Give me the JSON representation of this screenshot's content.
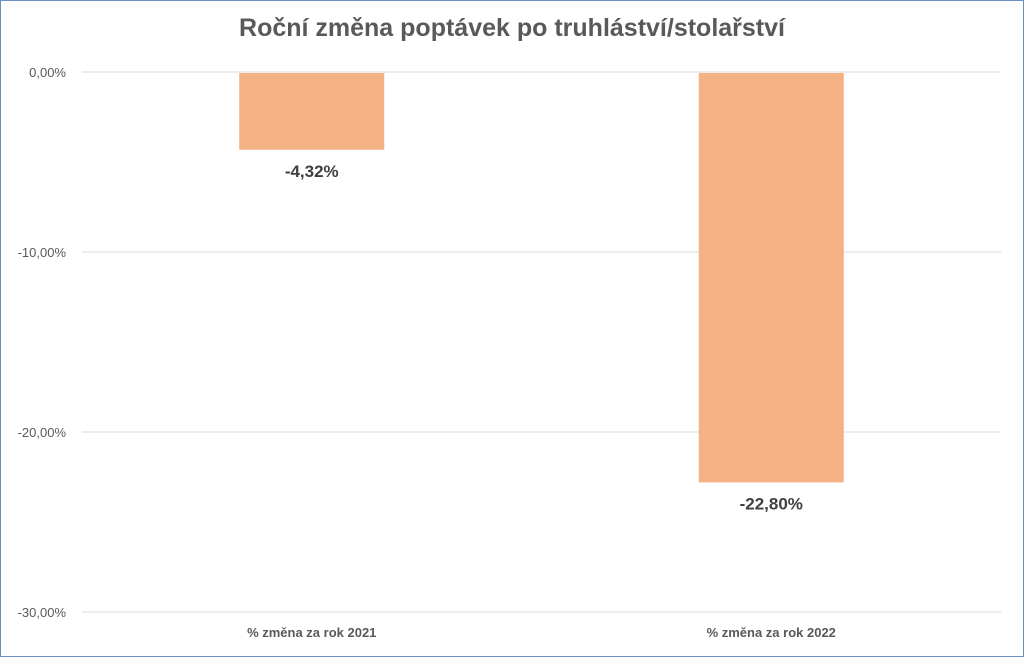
{
  "chart_data": {
    "type": "bar",
    "title": "Roční změna poptávek po truhlásтví/stolařství",
    "categories": [
      "% změna za rok 2021",
      "% změna za rok 2022"
    ],
    "values": [
      -4.32,
      -22.8
    ],
    "data_labels": [
      "-4,32%",
      "-22,80%"
    ],
    "ylim": [
      -30,
      0
    ],
    "yticks": [
      0,
      -10,
      -20,
      -30
    ],
    "ytick_labels": [
      "0,00%",
      "-10,00%",
      "-20,00%",
      "-30,00%"
    ],
    "xlabel": "",
    "ylabel": "",
    "grid": true,
    "legend": "none",
    "colors": {
      "bar": "#f4b183",
      "grid": "#d9d9d9",
      "text": "#595959",
      "border": "#6d8fc7"
    }
  }
}
